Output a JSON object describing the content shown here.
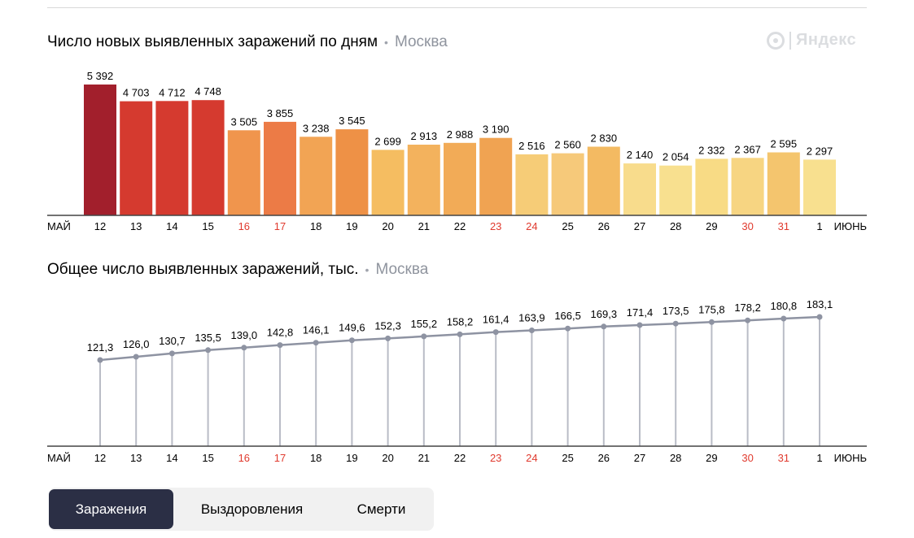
{
  "tabs": [
    "Заражения",
    "Выздоровления",
    "Смерти"
  ],
  "logo_text": "Яндекс",
  "chart_data": [
    {
      "type": "bar",
      "title": "Число новых выявленных заражений по дням",
      "region": "Москва",
      "categories": [
        "12",
        "13",
        "14",
        "15",
        "16",
        "17",
        "18",
        "19",
        "20",
        "21",
        "22",
        "23",
        "24",
        "25",
        "26",
        "27",
        "28",
        "29",
        "30",
        "31",
        "1"
      ],
      "values": [
        5392,
        4703,
        4712,
        4748,
        3505,
        3855,
        3238,
        3545,
        2699,
        2913,
        2988,
        3190,
        2516,
        2560,
        2830,
        2140,
        2054,
        2332,
        2367,
        2595,
        2297
      ],
      "labels": [
        "5 392",
        "4 703",
        "4 712",
        "4 748",
        "3 505",
        "3 855",
        "3 238",
        "3 545",
        "2 699",
        "2 913",
        "2 988",
        "3 190",
        "2 516",
        "2 560",
        "2 830",
        "2 140",
        "2 054",
        "2 332",
        "2 367",
        "2 595",
        "2 297"
      ],
      "bar_colors": [
        "#a21f2c",
        "#d53a2f",
        "#d53a2f",
        "#d53a2f",
        "#f0954d",
        "#ec7b46",
        "#f2a454",
        "#ee9146",
        "#f5bd61",
        "#f3b25d",
        "#f2ab57",
        "#f0a352",
        "#f6cc77",
        "#f6c97a",
        "#f3ba62",
        "#f8dc8c",
        "#f8e08f",
        "#f8db85",
        "#f7d582",
        "#f4c56e",
        "#f8e08f"
      ],
      "red_categories": [
        "16",
        "17",
        "23",
        "24",
        "30",
        "31"
      ],
      "x_start_label": "МАЙ",
      "x_end_label": "ИЮНЬ",
      "ylim": [
        0,
        5392
      ]
    },
    {
      "type": "line",
      "title": "Общее число выявленных заражений, тыс.",
      "region": "Москва",
      "categories": [
        "12",
        "13",
        "14",
        "15",
        "16",
        "17",
        "18",
        "19",
        "20",
        "21",
        "22",
        "23",
        "24",
        "25",
        "26",
        "27",
        "28",
        "29",
        "30",
        "31",
        "1"
      ],
      "values": [
        121.3,
        126.0,
        130.7,
        135.5,
        139.0,
        142.8,
        146.1,
        149.6,
        152.3,
        155.2,
        158.2,
        161.4,
        163.9,
        166.5,
        169.3,
        171.4,
        173.5,
        175.8,
        178.2,
        180.8,
        183.1
      ],
      "labels": [
        "121,3",
        "126,0",
        "130,7",
        "135,5",
        "139,0",
        "142,8",
        "146,1",
        "149,6",
        "152,3",
        "155,2",
        "158,2",
        "161,4",
        "163,9",
        "166,5",
        "169,3",
        "171,4",
        "173,5",
        "175,8",
        "178,2",
        "180,8",
        "183,1"
      ],
      "red_categories": [
        "16",
        "17",
        "23",
        "24",
        "30",
        "31"
      ],
      "x_start_label": "МАЙ",
      "x_end_label": "ИЮНЬ",
      "line_color": "#8e93a2",
      "ylim": [
        0,
        183.1
      ]
    }
  ]
}
